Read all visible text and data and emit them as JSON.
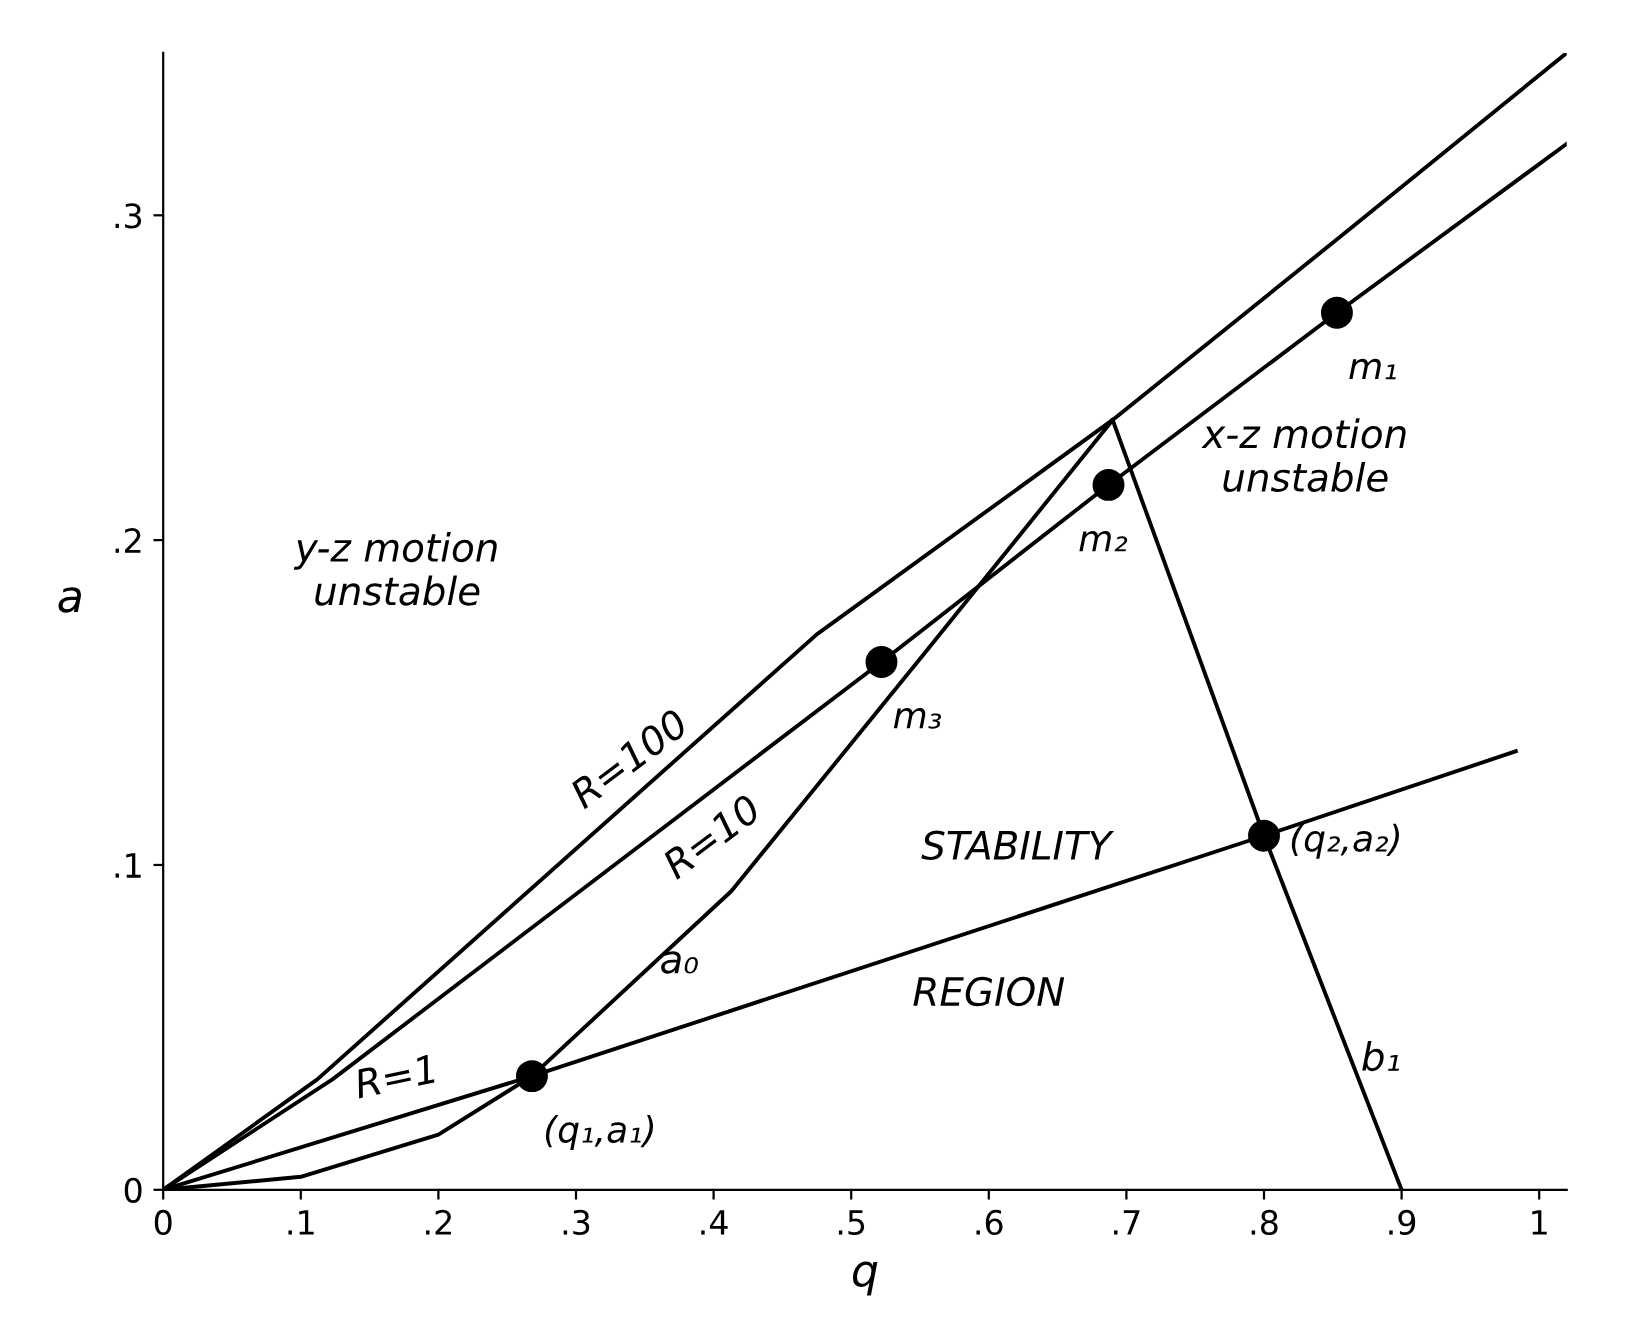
{
  "chart_data": {
    "type": "line",
    "xlabel": "q",
    "ylabel": "a",
    "xlim": [
      0,
      1.02
    ],
    "ylim": [
      0,
      0.35
    ],
    "xticks": [
      {
        "value": 0,
        "label": "0"
      },
      {
        "value": 0.1,
        "label": ".1"
      },
      {
        "value": 0.2,
        "label": ".2"
      },
      {
        "value": 0.3,
        "label": ".3"
      },
      {
        "value": 0.4,
        "label": ".4"
      },
      {
        "value": 0.5,
        "label": ".5"
      },
      {
        "value": 0.6,
        "label": ".6"
      },
      {
        "value": 0.7,
        "label": ".7"
      },
      {
        "value": 0.8,
        "label": ".8"
      },
      {
        "value": 0.9,
        "label": ".9"
      },
      {
        "value": 1,
        "label": "1"
      }
    ],
    "yticks": [
      {
        "value": 0,
        "label": "0"
      },
      {
        "value": 0.1,
        "label": ".1"
      },
      {
        "value": 0.2,
        "label": ".2"
      },
      {
        "value": 0.3,
        "label": ".3"
      }
    ],
    "grid": false,
    "line_style": "solid",
    "series": [
      {
        "color": "#000000",
        "x": [
          0,
          0.112,
          0.475,
          0.69,
          0.863,
          1.02
        ],
        "values": [
          0,
          0.034,
          0.171,
          0.237,
          0.296,
          0.35
        ]
      },
      {
        "color": "#000000",
        "x": [
          0,
          0.123,
          0.522,
          0.687,
          0.853,
          1.02
        ],
        "values": [
          0,
          0.034,
          0.1625,
          0.217,
          0.27,
          0.322
        ]
      },
      {
        "color": "#000000",
        "x": [
          0,
          0.268,
          0.8,
          0.983
        ],
        "values": [
          0,
          0.035,
          0.109,
          0.135
        ]
      },
      {
        "color": "#000000",
        "x": [
          0,
          0.1,
          0.2,
          0.268,
          0.413,
          0.553,
          0.69
        ],
        "values": [
          0,
          0.004,
          0.017,
          0.035,
          0.092,
          0.165,
          0.237
        ]
      },
      {
        "color": "#000000",
        "x": [
          0.69,
          0.8,
          0.9
        ],
        "values": [
          0.237,
          0.109,
          0
        ]
      },
      {
        "type": "scatter",
        "marker": "circle",
        "color": "#000000",
        "x": [
          0.853,
          0.687,
          0.522,
          0.268,
          0.8
        ],
        "values": [
          0.27,
          0.217,
          0.1625,
          0.035,
          0.109
        ]
      }
    ],
    "annotations": [
      {
        "text": "m₁",
        "x": 0.853,
        "y": 0.27
      },
      {
        "text": "m₂",
        "x": 0.687,
        "y": 0.217
      },
      {
        "text": "m₃",
        "x": 0.522,
        "y": 0.1625
      },
      {
        "text": "(q₁,a₁)",
        "x": 0.268,
        "y": 0.035
      },
      {
        "text": "(q₂,a₂)",
        "x": 0.8,
        "y": 0.109
      },
      "R=100",
      "R=10",
      "R=1",
      "a₀",
      "b₁",
      "STABILITY",
      "REGION",
      "y-z motion\nunstable",
      "x-z motion\nunstable"
    ]
  }
}
